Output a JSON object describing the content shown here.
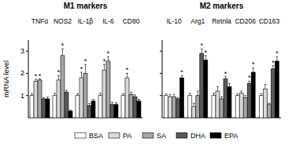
{
  "chart_data": [
    {
      "type": "bar",
      "title": "M1 markers",
      "y_label": "mRNA level",
      "categories": [
        "TNFα",
        "NOS2",
        "IL-1β",
        "IL-6",
        "CD80"
      ],
      "series": [
        {
          "name": "BSA",
          "color": "#ffffff",
          "values": [
            1.0,
            1.0,
            1.0,
            1.0,
            1.0
          ],
          "errors": [
            0.08,
            0.1,
            0.08,
            0.1,
            0.08
          ]
        },
        {
          "name": "PA",
          "color": "#d9d9d9",
          "values": [
            1.65,
            1.7,
            1.8,
            2.15,
            1.8
          ],
          "errors": [
            0.08,
            0.2,
            0.25,
            0.25,
            0.2
          ]
        },
        {
          "name": "SA",
          "color": "#a6a6a6",
          "values": [
            1.7,
            2.8,
            2.0,
            2.55,
            1.05
          ],
          "errors": [
            0.05,
            0.3,
            0.4,
            0.2,
            0.1
          ]
        },
        {
          "name": "DHA",
          "color": "#595959",
          "values": [
            0.85,
            1.15,
            0.55,
            0.6,
            0.95
          ],
          "errors": [
            0.05,
            0.08,
            0.1,
            0.1,
            0.08
          ]
        },
        {
          "name": "EPA",
          "color": "#000000",
          "values": [
            0.85,
            0.3,
            0.75,
            0.6,
            0.75
          ],
          "errors": [
            0.08,
            0.05,
            0.08,
            0.08,
            0.08
          ]
        }
      ],
      "annotations": [
        {
          "text": "*",
          "category": "TNFα",
          "series": "PA"
        },
        {
          "text": "*",
          "category": "TNFα",
          "series": "SA"
        },
        {
          "text": "*",
          "category": "NOS2",
          "series": "PA"
        },
        {
          "text": "*",
          "category": "NOS2",
          "series": "SA"
        },
        {
          "text": "*",
          "category": "IL-1β",
          "series": "PA"
        },
        {
          "text": "*",
          "category": "IL-1β",
          "series": "SA"
        },
        {
          "text": "*",
          "category": "IL-6",
          "series": "PA"
        },
        {
          "text": "*",
          "category": "IL-6",
          "series": "SA"
        },
        {
          "text": "*",
          "category": "CD80",
          "series": "PA"
        }
      ],
      "ylim": [
        0,
        3.5
      ],
      "yticks": [
        1,
        2,
        3
      ],
      "grid": false,
      "legend": "bottom"
    },
    {
      "type": "bar",
      "title": "M2 markers",
      "categories": [
        "IL-10",
        "Arg1",
        "Retnla",
        "CD206",
        "CD163"
      ],
      "series": [
        {
          "name": "BSA",
          "color": "#ffffff",
          "values": [
            1.0,
            1.0,
            1.0,
            1.0,
            1.0
          ],
          "errors": [
            0.08,
            0.1,
            0.1,
            0.08,
            0.08
          ]
        },
        {
          "name": "PA",
          "color": "#d9d9d9",
          "values": [
            0.95,
            0.5,
            1.2,
            1.1,
            1.3
          ],
          "errors": [
            0.1,
            0.15,
            0.2,
            0.1,
            0.2
          ]
        },
        {
          "name": "SA",
          "color": "#a6a6a6",
          "values": [
            0.95,
            1.0,
            0.85,
            0.9,
            0.6
          ],
          "errors": [
            0.1,
            0.2,
            0.1,
            0.1,
            0.05
          ]
        },
        {
          "name": "DHA",
          "color": "#595959",
          "values": [
            0.85,
            2.9,
            1.75,
            1.55,
            2.2
          ],
          "errors": [
            0.05,
            0.2,
            0.1,
            0.1,
            0.15
          ]
        },
        {
          "name": "EPA",
          "color": "#000000",
          "values": [
            1.8,
            2.6,
            1.4,
            2.05,
            2.55
          ],
          "errors": [
            0.1,
            0.2,
            0.15,
            0.2,
            0.2
          ]
        }
      ],
      "annotations": [
        {
          "text": "*",
          "category": "IL-10",
          "series": "EPA"
        },
        {
          "text": "*",
          "category": "Arg1",
          "series": "DHA"
        },
        {
          "text": "*",
          "category": "Arg1",
          "series": "EPA"
        },
        {
          "text": "*",
          "category": "Retnla",
          "series": "DHA"
        },
        {
          "text": "*",
          "category": "CD206",
          "series": "DHA"
        },
        {
          "text": "*",
          "category": "CD206",
          "series": "EPA"
        },
        {
          "text": "*",
          "category": "CD163",
          "series": "DHA"
        },
        {
          "text": "*",
          "category": "CD163",
          "series": "EPA"
        }
      ],
      "ylim": [
        0,
        3.5
      ],
      "yticks": [
        1,
        2,
        3
      ],
      "grid": false,
      "tick_labels": "x"
    }
  ]
}
